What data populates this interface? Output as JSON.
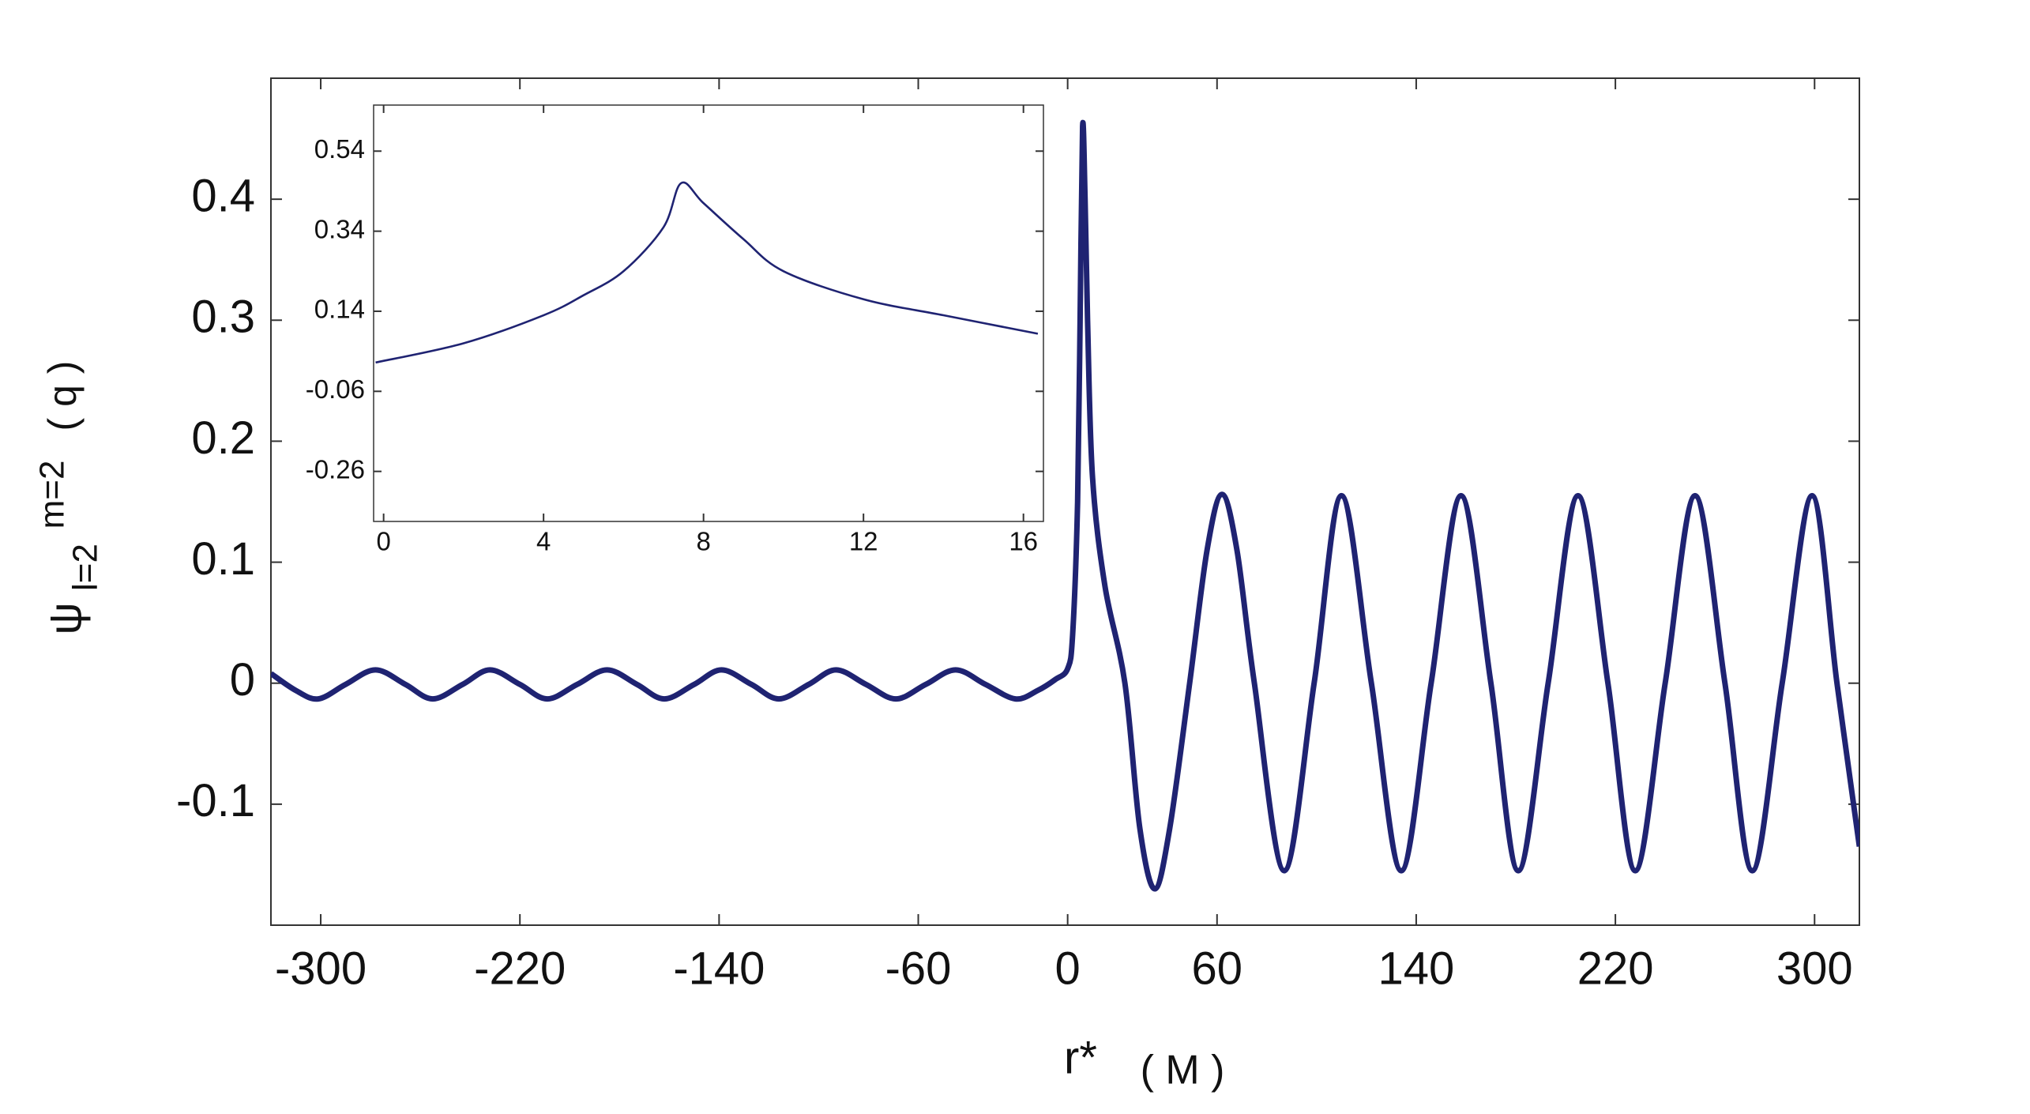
{
  "chart_data": [
    {
      "type": "line",
      "xlabel": {
        "symbol": "r*",
        "unit": "( M )"
      },
      "ylabel": {
        "symbol": "ψ",
        "superscript": "m=2",
        "subscript": "l=2",
        "argument": "( q )"
      },
      "x": [
        -320,
        -310,
        -301,
        -290,
        -278,
        -266,
        -255,
        -243,
        -232,
        -220,
        -209,
        -197,
        -185,
        -173,
        -162,
        -150,
        -139,
        -127,
        -116,
        -104,
        -93,
        -81,
        -69,
        -57,
        -45,
        -33,
        -21,
        -12,
        -5,
        0,
        2,
        4,
        5,
        6,
        7,
        8,
        10,
        15,
        23,
        29,
        35,
        41,
        49,
        56,
        62,
        68,
        75,
        87,
        99,
        110,
        122,
        134,
        146,
        158,
        170,
        181,
        193,
        205,
        217,
        228,
        240,
        252,
        264,
        275,
        287,
        299,
        309,
        318
      ],
      "series": [
        {
          "color": "#1f2372",
          "values": [
            0.008,
            -0.006,
            -0.013,
            -0.001,
            0.011,
            -0.001,
            -0.013,
            -0.001,
            0.011,
            -0.001,
            -0.013,
            -0.001,
            0.011,
            -0.001,
            -0.013,
            -0.001,
            0.011,
            -0.001,
            -0.013,
            -0.001,
            0.011,
            -0.001,
            -0.013,
            -0.001,
            0.011,
            -0.001,
            -0.013,
            -0.006,
            0.003,
            0.012,
            0.04,
            0.15,
            0.3,
            0.46,
            0.4,
            0.3,
            0.17,
            0.08,
            0,
            -0.12,
            -0.17,
            -0.12,
            0,
            0.11,
            0.156,
            0.11,
            0,
            -0.155,
            0,
            0.155,
            0,
            -0.155,
            0,
            0.155,
            0,
            -0.155,
            0,
            0.155,
            0,
            -0.155,
            0,
            0.155,
            0,
            -0.155,
            0,
            0.155,
            0,
            -0.135
          ]
        }
      ],
      "xlim": [
        -320,
        318
      ],
      "ylim": [
        -0.2,
        0.5
      ],
      "xticks": [
        -300,
        -220,
        -140,
        -60,
        0,
        60,
        140,
        220,
        300
      ],
      "yticks": [
        -0.1,
        0,
        0.1,
        0.2,
        0.3,
        0.4
      ]
    },
    {
      "type": "line",
      "x": [
        -0.2,
        2,
        4,
        5,
        6,
        7,
        7.44,
        8,
        9,
        10,
        12,
        14,
        16.36
      ],
      "series": [
        {
          "color": "#1f2372",
          "values": [
            0.012,
            0.06,
            0.13,
            0.18,
            0.24,
            0.35,
            0.46,
            0.41,
            0.32,
            0.24,
            0.17,
            0.13,
            0.084
          ]
        }
      ],
      "xlim": [
        -0.25,
        16.5
      ],
      "ylim": [
        -0.385,
        0.655
      ],
      "xticks": [
        0,
        4,
        8,
        12,
        16
      ],
      "yticks": [
        0.54,
        0.34,
        0.14,
        -0.06,
        -0.26
      ]
    }
  ]
}
